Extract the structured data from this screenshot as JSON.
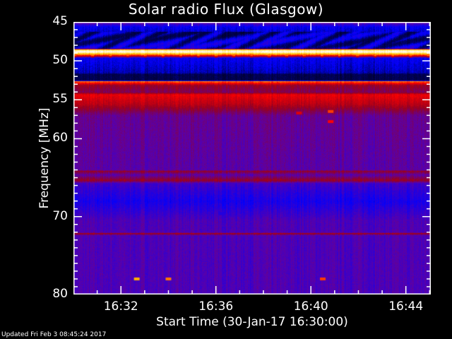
{
  "chart_data": {
    "type": "heatmap",
    "title": "Solar radio Flux (Glasgow)",
    "xlabel": "Start Time (30-Jan-17 16:30:00)",
    "ylabel": "Frequency [MHz]",
    "x_range": [
      "16:30",
      "16:45"
    ],
    "y_range": [
      45,
      80
    ],
    "y_inverted": true,
    "x_ticks": [
      "16:32",
      "16:36",
      "16:40",
      "16:44"
    ],
    "y_ticks": [
      45,
      50,
      55,
      60,
      70,
      80
    ],
    "colormap": [
      "#000000",
      "#000060",
      "#0000ff",
      "#5a00aa",
      "#960020",
      "#ff0000",
      "#ffc800",
      "#ffffff"
    ],
    "band_profile_mhz_level": [
      [
        45.0,
        0.4
      ],
      [
        45.6,
        0.25
      ],
      [
        46.2,
        0.22
      ],
      [
        48.4,
        0.26
      ],
      [
        48.5,
        0.85
      ],
      [
        48.8,
        1.0
      ],
      [
        49.2,
        0.72
      ],
      [
        49.6,
        0.25
      ],
      [
        51.5,
        0.2
      ],
      [
        51.7,
        0.12
      ],
      [
        52.5,
        0.12
      ],
      [
        52.6,
        0.75
      ],
      [
        53.1,
        0.5
      ],
      [
        54.0,
        0.45
      ],
      [
        54.3,
        0.62
      ],
      [
        55.5,
        0.55
      ],
      [
        57.0,
        0.4
      ],
      [
        64.0,
        0.38
      ],
      [
        64.1,
        0.5
      ],
      [
        64.6,
        0.38
      ],
      [
        65.3,
        0.5
      ],
      [
        65.7,
        0.34
      ],
      [
        68.0,
        0.28
      ],
      [
        70.5,
        0.36
      ],
      [
        72.0,
        0.36
      ],
      [
        72.1,
        0.52
      ],
      [
        72.4,
        0.36
      ],
      [
        80.0,
        0.36
      ]
    ],
    "bursts": [
      {
        "time": "16:39:30",
        "freq_mhz": 56.7,
        "level": 0.6
      },
      {
        "time": "16:40:50",
        "freq_mhz": 56.5,
        "level": 0.7
      },
      {
        "time": "16:40:50",
        "freq_mhz": 57.8,
        "level": 0.65
      },
      {
        "time": "16:32:40",
        "freq_mhz": 78.0,
        "level": 0.8
      },
      {
        "time": "16:34:00",
        "freq_mhz": 78.0,
        "level": 0.75
      },
      {
        "time": "16:36:15",
        "freq_mhz": 69.6,
        "level": 0.3
      },
      {
        "time": "16:40:30",
        "freq_mhz": 78.0,
        "level": 0.7
      }
    ]
  },
  "footer": {
    "updated": "Updated Fri Feb  3 08:45:24 2017"
  }
}
